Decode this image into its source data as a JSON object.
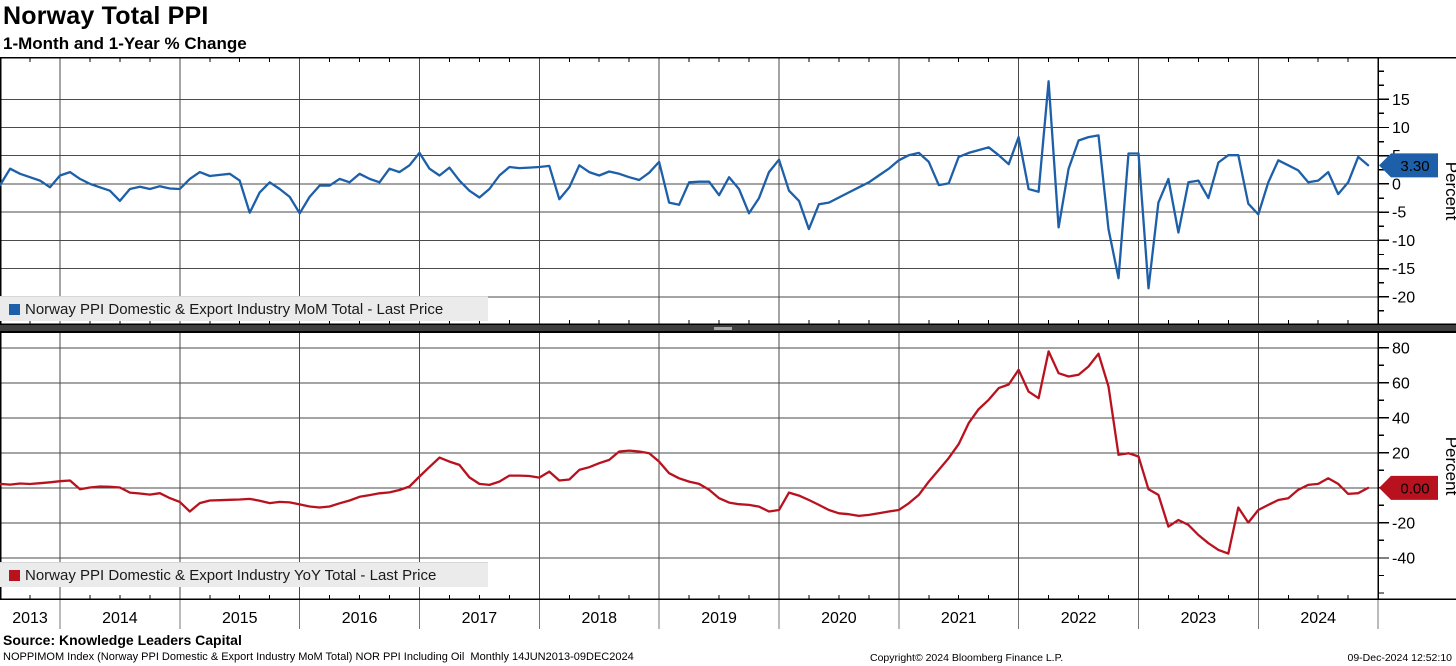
{
  "header": {
    "title": "Norway Total PPI",
    "subtitle": "1-Month and 1-Year % Change"
  },
  "footer": {
    "source": "Source: Knowledge Leaders Capital",
    "description": "NOPPIMOM Index (Norway PPI Domestic & Export Industry MoM Total) NOR PPI Including Oil  Monthly 14JUN2013-09DEC2024",
    "copyright": "Copyright© 2024 Bloomberg Finance L.P.",
    "timestamp": "09-Dec-2024 12:52:10"
  },
  "colors": {
    "mom_blue": "#1d5fa8",
    "yoy_red": "#b9121f",
    "grid": "#4a4a4a",
    "axis": "#000000",
    "legend_bg": "#ebebeb",
    "tag_text": "#ffffff"
  },
  "x_axis": {
    "years": [
      "2013",
      "2014",
      "2015",
      "2016",
      "2017",
      "2018",
      "2019",
      "2020",
      "2021",
      "2022",
      "2023",
      "2024"
    ]
  },
  "chart_data": [
    {
      "type": "line",
      "panel": "top",
      "legend": "Norway PPI Domestic & Export Industry MoM Total - Last Price",
      "ylabel": "Percent",
      "frequency": "monthly",
      "start": "2013-06",
      "end": "2024-12",
      "last_price": 3.3,
      "last_price_label": "3.30",
      "ylim": [
        -25,
        22.5
      ],
      "yticks": [
        15,
        10,
        5,
        0,
        -5,
        -10,
        -15,
        -20
      ],
      "minor_tick_step": 2.5,
      "grid": true,
      "legend_position": "bottom-left",
      "values": [
        0.3,
        -0.2,
        2.7,
        1.8,
        1.2,
        0.6,
        -0.6,
        1.5,
        2.1,
        0.9,
        0.0,
        -0.6,
        -1.2,
        -3.0,
        -0.9,
        -0.5,
        -0.9,
        -0.4,
        -0.8,
        -0.9,
        0.9,
        2.1,
        1.4,
        1.6,
        1.8,
        0.6,
        -5.1,
        -1.5,
        0.3,
        -0.9,
        -2.3,
        -5.2,
        -2.3,
        -0.3,
        -0.3,
        0.9,
        0.3,
        1.8,
        0.9,
        0.3,
        2.7,
        2.1,
        3.3,
        5.5,
        2.7,
        1.5,
        2.9,
        0.6,
        -1.2,
        -2.4,
        -0.9,
        1.5,
        3.0,
        2.8,
        2.9,
        3.0,
        3.2,
        -2.7,
        -0.6,
        3.3,
        2.1,
        1.5,
        2.2,
        1.8,
        1.2,
        0.7,
        2.0,
        3.9,
        -3.3,
        -3.7,
        0.3,
        0.4,
        0.4,
        -2.0,
        1.2,
        -0.9,
        -5.2,
        -2.5,
        2.1,
        4.3,
        -1.2,
        -3.0,
        -8.0,
        -3.6,
        -3.3,
        -2.4,
        -1.5,
        -0.6,
        0.3,
        1.5,
        2.7,
        4.2,
        5.1,
        5.5,
        3.9,
        -0.2,
        0.1,
        4.8,
        5.5,
        6.0,
        6.5,
        5.1,
        3.5,
        8.3,
        -0.9,
        -1.4,
        18.2,
        -7.7,
        2.7,
        7.7,
        8.3,
        8.6,
        -8.0,
        -16.7,
        5.4,
        5.4,
        -18.5,
        -3.3,
        0.9,
        -8.6,
        0.3,
        0.6,
        -2.5,
        3.8,
        5.1,
        5.1,
        -3.5,
        -5.4,
        0.3,
        4.2,
        3.3,
        2.4,
        0.3,
        0.6,
        2.1,
        -1.8,
        0.3,
        4.8,
        3.3
      ]
    },
    {
      "type": "line",
      "panel": "bottom",
      "legend": "Norway PPI Domestic & Export Industry YoY Total - Last Price",
      "ylabel": "Percent",
      "frequency": "monthly",
      "start": "2013-06",
      "end": "2024-12",
      "last_price": 0.0,
      "last_price_label": "0.00",
      "ylim": [
        -64,
        89
      ],
      "yticks": [
        80,
        60,
        40,
        20,
        0,
        -20,
        -40
      ],
      "minor_tick_step": 10,
      "grid": true,
      "legend_position": "bottom-left",
      "values": [
        1.7,
        2.3,
        1.9,
        2.5,
        2.2,
        2.7,
        3.2,
        3.8,
        4.2,
        -0.8,
        0.2,
        0.8,
        0.6,
        0.2,
        -2.7,
        -3.2,
        -3.8,
        -3.0,
        -5.8,
        -8.0,
        -13.5,
        -8.7,
        -7.2,
        -7.0,
        -6.8,
        -6.6,
        -6.3,
        -7.3,
        -8.7,
        -8.0,
        -8.3,
        -9.4,
        -10.6,
        -11.2,
        -10.6,
        -8.8,
        -7.2,
        -5.1,
        -4.1,
        -3.1,
        -2.6,
        -1.2,
        0.8,
        6.5,
        12.0,
        17.3,
        15.0,
        13.1,
        6.0,
        2.3,
        1.7,
        3.6,
        7.0,
        7.0,
        6.8,
        5.9,
        9.3,
        4.2,
        4.8,
        10.3,
        11.8,
        14.1,
        16.0,
        20.8,
        21.3,
        20.8,
        19.8,
        15.0,
        8.4,
        5.5,
        3.6,
        2.3,
        -1.1,
        -5.9,
        -8.4,
        -9.3,
        -9.7,
        -10.7,
        -13.5,
        -12.6,
        -2.7,
        -4.4,
        -6.9,
        -9.7,
        -12.6,
        -14.5,
        -15.0,
        -16.0,
        -15.4,
        -14.5,
        -13.5,
        -12.6,
        -8.8,
        -4.0,
        3.6,
        10.3,
        17.0,
        25.0,
        37.0,
        45.0,
        50.3,
        57.0,
        59.0,
        67.4,
        55.0,
        51.2,
        77.9,
        65.5,
        63.6,
        64.6,
        69.3,
        76.6,
        57.9,
        18.9,
        19.8,
        17.9,
        -0.8,
        -4.0,
        -22.1,
        -18.3,
        -21.1,
        -26.9,
        -31.6,
        -35.4,
        -37.5,
        -11.2,
        -19.8,
        -12.6,
        -9.7,
        -6.9,
        -5.9,
        -1.1,
        1.7,
        2.3,
        5.5,
        2.3,
        -3.4,
        -3.0,
        0.0
      ]
    }
  ]
}
